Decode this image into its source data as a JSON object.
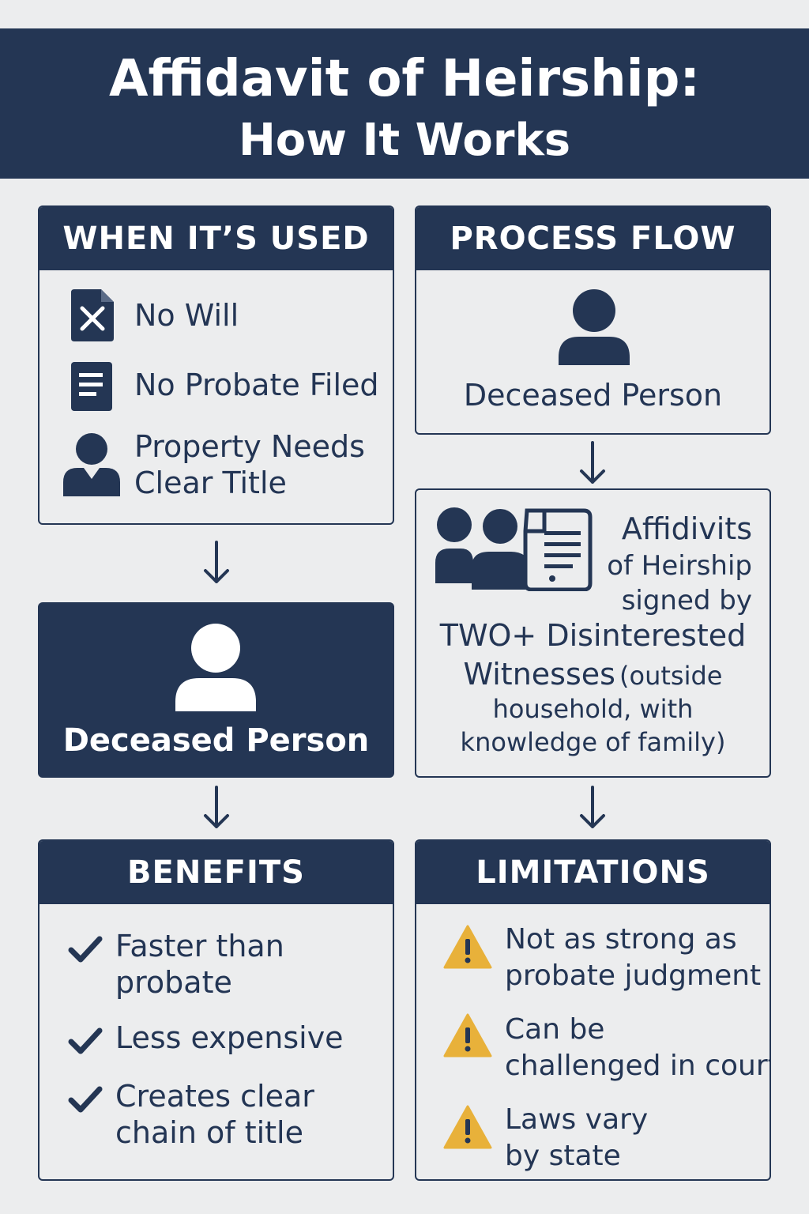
{
  "header": {
    "title_line1": "Affidavit of Heirship:",
    "title_line2": "How It Works"
  },
  "when_used": {
    "heading": "WHEN IT’S USED",
    "items": [
      {
        "icon": "x-document-icon",
        "label": "No Will"
      },
      {
        "icon": "document-icon",
        "label": "No Probate Filed"
      },
      {
        "icon": "person-icon",
        "label_line1": "Property Needs",
        "label_line2": "Clear Title"
      }
    ]
  },
  "deceased_dark": {
    "label": "Deceased Person"
  },
  "process_flow": {
    "heading": "PROCESS FLOW",
    "deceased_label": "Deceased Person",
    "affidavit": {
      "line1": "Affidivits",
      "line2": "of Heirship",
      "line3": "signed by",
      "line4": "TWO+ Disinterested",
      "line5_strong": "Witnesses",
      "line5_rest": "(outside",
      "line6": "household, with",
      "line7": "knowledge of family)"
    }
  },
  "benefits": {
    "heading": "BENEFITS",
    "items": [
      {
        "line1": "Faster than",
        "line2": "probate"
      },
      {
        "line1": "Less expensive",
        "line2": ""
      },
      {
        "line1": "Creates clear",
        "line2": "chain of title"
      }
    ]
  },
  "limitations": {
    "heading": "LIMITATIONS",
    "items": [
      {
        "line1": "Not as strong as",
        "line2": "probate judgment"
      },
      {
        "line1": "Can be",
        "line2": "challenged in court"
      },
      {
        "line1": "Laws vary",
        "line2": "by state"
      }
    ]
  },
  "colors": {
    "navy": "#243654",
    "background": "#ecedee",
    "warning": "#e8b13a"
  }
}
